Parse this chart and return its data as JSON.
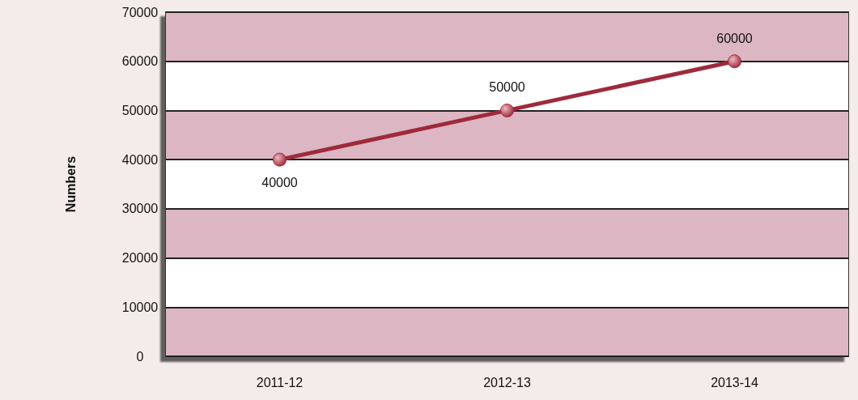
{
  "chart_data": {
    "type": "line",
    "ylabel": "Numbers",
    "categories": [
      "2011-12",
      "2012-13",
      "2013-14"
    ],
    "series": [
      {
        "color": "#9e2a3c",
        "values": [
          40000,
          50000,
          60000
        ]
      }
    ],
    "ylim": [
      0,
      70000
    ],
    "yticks": [
      0,
      10000,
      20000,
      30000,
      40000,
      50000,
      60000,
      70000
    ],
    "grid": "y",
    "marker": "circle",
    "line_style": "solid",
    "data_labels": true
  }
}
